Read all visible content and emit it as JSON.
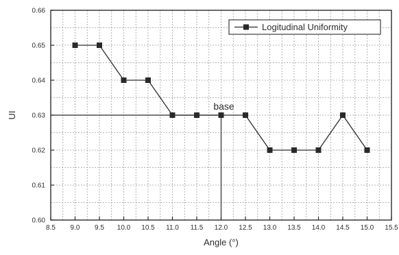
{
  "chart_data": {
    "type": "line",
    "title": "",
    "xlabel": "Angle (°)",
    "ylabel": "UI",
    "xlim": [
      8.5,
      15.5
    ],
    "ylim": [
      0.6,
      0.66
    ],
    "x_ticks": [
      8.5,
      9.0,
      9.5,
      10.0,
      10.5,
      11.0,
      11.5,
      12.0,
      12.5,
      13.0,
      13.5,
      14.0,
      14.5,
      15.0,
      15.5
    ],
    "x_tick_labels": [
      "8.5",
      "9.0",
      "9.5",
      "10.0",
      "10.5",
      "11.0",
      "11.5",
      "12.0",
      "12.5",
      "13.0",
      "13.5",
      "14.0",
      "14.5",
      "15.0",
      "15.5"
    ],
    "y_ticks": [
      0.6,
      0.61,
      0.62,
      0.63,
      0.64,
      0.65,
      0.66
    ],
    "y_tick_labels": [
      "0.60",
      "0.61",
      "0.62",
      "0.63",
      "0.64",
      "0.65",
      "0.66"
    ],
    "grid": true,
    "legend_position": "top-right",
    "series": [
      {
        "name": "Logitudinal Uniformity",
        "marker": "square",
        "color": "#2a2a2a",
        "x": [
          9.0,
          9.5,
          10.0,
          10.5,
          11.0,
          11.5,
          12.0,
          12.5,
          13.0,
          13.5,
          14.0,
          14.5,
          15.0
        ],
        "y": [
          0.65,
          0.65,
          0.64,
          0.64,
          0.63,
          0.63,
          0.63,
          0.63,
          0.62,
          0.62,
          0.62,
          0.63,
          0.62
        ]
      }
    ],
    "reference_lines": {
      "horizontal_y": 0.63,
      "vertical_x": 12.0
    },
    "annotations": [
      {
        "text": "base",
        "x": 12.0,
        "y": 0.63
      }
    ]
  }
}
